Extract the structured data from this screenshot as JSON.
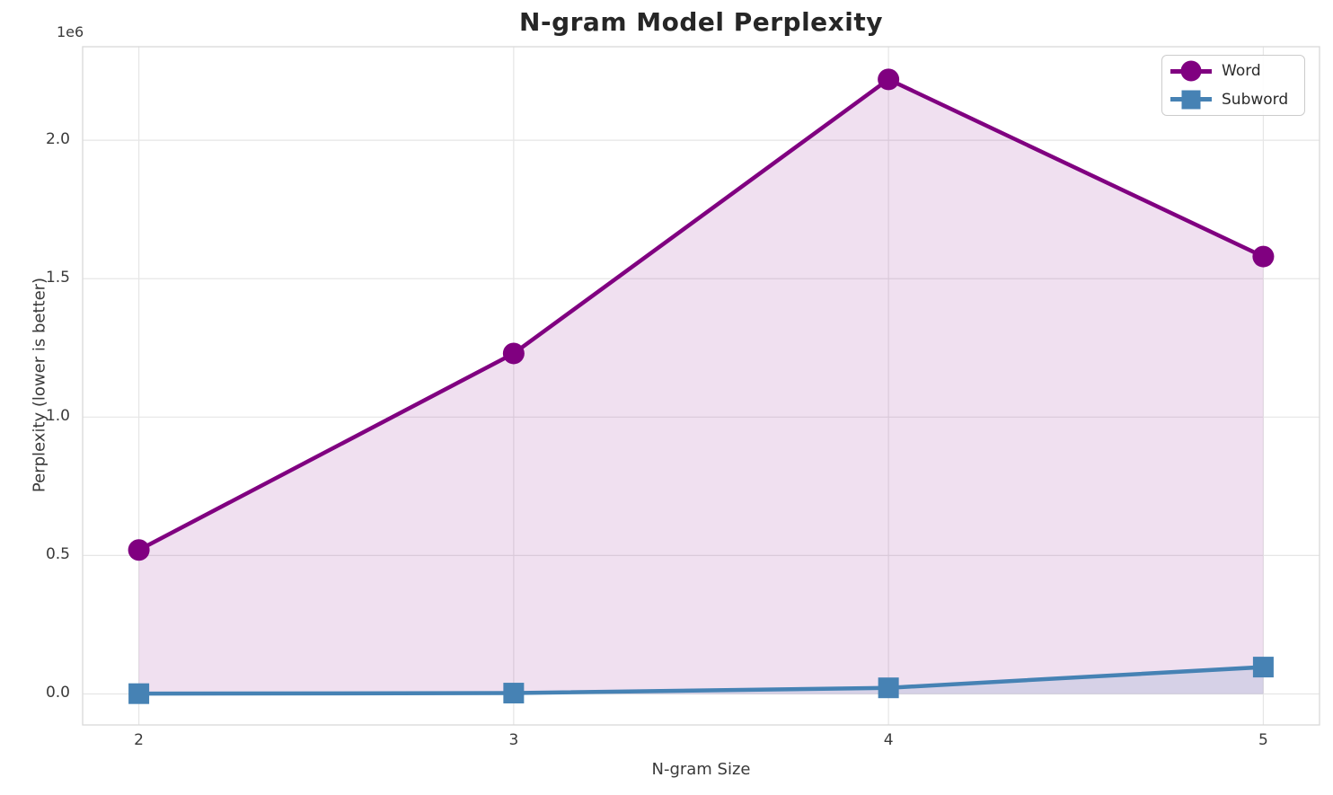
{
  "chart_data": {
    "type": "line",
    "title": "N-gram Model Perplexity",
    "xlabel": "N-gram Size",
    "ylabel": "Perplexity (lower is better)",
    "y_offset_label": "1e6",
    "x": [
      2,
      3,
      4,
      5
    ],
    "series": [
      {
        "name": "Word",
        "color": "#800080",
        "marker": "circle",
        "fill_alpha": 0.12,
        "values": [
          520000,
          1230000,
          2220000,
          1580000
        ]
      },
      {
        "name": "Subword",
        "color": "#4682B4",
        "marker": "square",
        "fill_alpha": 0.15,
        "values": [
          1000,
          3000,
          22000,
          97000
        ]
      }
    ],
    "fill_to_zero": true,
    "xlim": [
      1.85,
      5.15
    ],
    "ylim": [
      -112000,
      2338000
    ],
    "xticks": {
      "values": [
        2,
        3,
        4,
        5
      ],
      "labels": [
        "2",
        "3",
        "4",
        "5"
      ]
    },
    "yticks": {
      "values": [
        0,
        500000,
        1000000,
        1500000,
        2000000
      ],
      "labels": [
        "0.0",
        "0.5",
        "1.0",
        "1.5",
        "2.0"
      ]
    },
    "grid": true,
    "legend_position": "upper right",
    "style": {
      "grid_color": "#e6e6e6",
      "spine_color": "#d9d9d9",
      "text_color": "#3a3a3a",
      "title_color": "#262626",
      "background": "#ffffff",
      "line_width": 4.5,
      "marker_size": 24
    }
  }
}
